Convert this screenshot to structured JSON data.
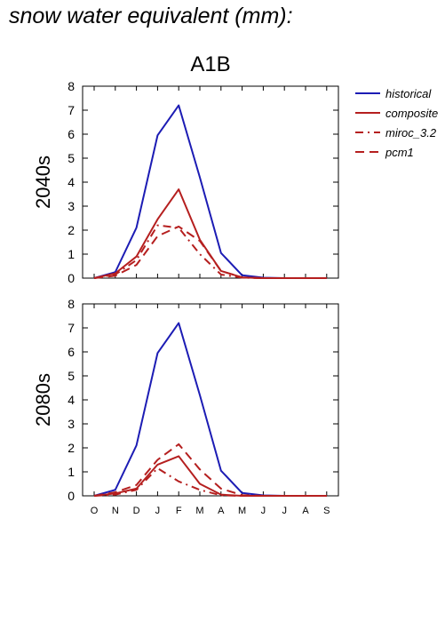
{
  "figure": {
    "title": "snow water equivalent (mm):",
    "scenario": "A1B"
  },
  "chart_data": [
    {
      "type": "line",
      "panel_label": "2040s",
      "categories": [
        "O",
        "N",
        "D",
        "J",
        "F",
        "M",
        "A",
        "M",
        "J",
        "J",
        "A",
        "S"
      ],
      "ylim": [
        0,
        8
      ],
      "yticks": [
        0,
        1,
        2,
        3,
        4,
        5,
        6,
        7,
        8
      ],
      "legend_position": "right",
      "series": [
        {
          "name": "historical",
          "color": "#1c1cb4",
          "dash": "solid",
          "values": [
            0,
            0.25,
            2.1,
            5.95,
            7.2,
            4.2,
            1.05,
            0.12,
            0.02,
            0,
            0,
            0
          ]
        },
        {
          "name": "composite",
          "color": "#b51f1f",
          "dash": "solid",
          "values": [
            0,
            0.2,
            0.9,
            2.45,
            3.7,
            1.6,
            0.3,
            0.03,
            0,
            0,
            0,
            0
          ]
        },
        {
          "name": "miroc_3.2",
          "color": "#b51f1f",
          "dash": "dashdot",
          "values": [
            0,
            0.15,
            0.75,
            2.2,
            2.1,
            1.0,
            0.15,
            0.02,
            0,
            0,
            0,
            0
          ]
        },
        {
          "name": "pcm1",
          "color": "#b51f1f",
          "dash": "dash",
          "values": [
            0,
            0.1,
            0.55,
            1.75,
            2.15,
            1.55,
            0.3,
            0.03,
            0,
            0,
            0,
            0
          ]
        }
      ]
    },
    {
      "type": "line",
      "panel_label": "2080s",
      "categories": [
        "O",
        "N",
        "D",
        "J",
        "F",
        "M",
        "A",
        "M",
        "J",
        "J",
        "A",
        "S"
      ],
      "ylim": [
        0,
        8
      ],
      "yticks": [
        0,
        1,
        2,
        3,
        4,
        5,
        6,
        7,
        8
      ],
      "series": [
        {
          "name": "historical",
          "color": "#1c1cb4",
          "dash": "solid",
          "values": [
            0,
            0.25,
            2.1,
            5.95,
            7.2,
            4.2,
            1.05,
            0.12,
            0.02,
            0,
            0,
            0
          ]
        },
        {
          "name": "composite",
          "color": "#b51f1f",
          "dash": "solid",
          "values": [
            0,
            0.1,
            0.3,
            1.3,
            1.65,
            0.5,
            0.05,
            0,
            0,
            0,
            0,
            0
          ]
        },
        {
          "name": "miroc_3.2",
          "color": "#b51f1f",
          "dash": "dashdot",
          "values": [
            0,
            0.05,
            0.25,
            1.15,
            0.6,
            0.25,
            0.02,
            0,
            0,
            0,
            0,
            0
          ]
        },
        {
          "name": "pcm1",
          "color": "#b51f1f",
          "dash": "dash",
          "values": [
            0,
            0.15,
            0.45,
            1.5,
            2.15,
            1.1,
            0.3,
            0.03,
            0,
            0,
            0,
            0
          ]
        }
      ]
    }
  ]
}
